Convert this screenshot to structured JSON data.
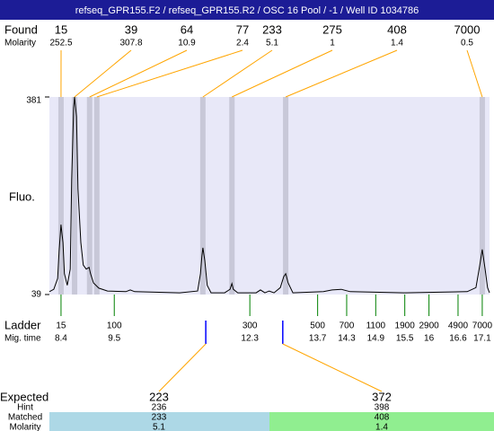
{
  "header": {
    "title": "refseq_GPR155.F2 / refseq_GPR155.R2 / OSC 16 Pool / -1 / Well ID 1034786"
  },
  "found": {
    "label": "Found",
    "molarity_label": "Molarity",
    "peaks": [
      {
        "size": 15,
        "molarity": 252.5,
        "time": 8.4
      },
      {
        "size": 39,
        "molarity": 307.8,
        "time": 8.68
      },
      {
        "size": 64,
        "molarity": 10.9,
        "time": 8.99
      },
      {
        "size": 77,
        "molarity": 2.4,
        "time": 9.14
      },
      {
        "size": 233,
        "molarity": 5.1,
        "time": 11.33
      },
      {
        "size": 275,
        "molarity": 1,
        "time": 11.93
      },
      {
        "size": 408,
        "molarity": 1.4,
        "time": 13.04
      },
      {
        "size": 7000,
        "molarity": 0.5,
        "time": 17.1
      }
    ]
  },
  "chart_data": {
    "type": "line",
    "y_label": "Fluo.",
    "color": "#000000",
    "xlim": [
      8.16,
      17.25
    ],
    "ylim": [
      39,
      381
    ],
    "yticks": [
      39,
      381
    ],
    "x": [
      8.16,
      8.25,
      8.33,
      8.36,
      8.4,
      8.44,
      8.47,
      8.53,
      8.59,
      8.62,
      8.66,
      8.68,
      8.72,
      8.75,
      8.81,
      8.86,
      8.92,
      8.98,
      9.01,
      9.07,
      9.18,
      9.36,
      9.74,
      9.83,
      9.92,
      10.85,
      11.22,
      11.28,
      11.31,
      11.33,
      11.37,
      11.42,
      11.5,
      11.78,
      11.89,
      11.93,
      11.96,
      12.05,
      12.43,
      12.52,
      12.61,
      12.7,
      12.8,
      12.93,
      13.0,
      13.04,
      13.09,
      13.19,
      13.82,
      14.0,
      14.19,
      14.37,
      15.49,
      16.79,
      16.97,
      17.05,
      17.1,
      17.16,
      17.21,
      17.25
    ],
    "values": [
      44,
      48,
      67,
      114,
      160,
      129,
      75,
      55,
      83,
      238,
      362,
      381,
      347,
      222,
      129,
      90,
      83,
      86,
      75,
      59,
      50,
      45,
      44,
      47,
      44,
      42,
      45,
      75,
      106,
      120,
      98,
      55,
      42,
      42,
      48,
      58,
      48,
      42,
      42,
      47,
      42,
      45,
      42,
      51,
      70,
      75,
      59,
      42,
      44,
      47,
      48,
      44,
      42,
      44,
      51,
      90,
      117,
      83,
      51,
      42
    ]
  },
  "ladder": {
    "label": "Ladder",
    "time_label": "Mig. time",
    "sizes": [
      15,
      100,
      300,
      500,
      700,
      1100,
      1900,
      2900,
      4900,
      7000
    ],
    "times": [
      8.4,
      9.5,
      12.3,
      13.7,
      14.3,
      14.9,
      15.5,
      16,
      16.6,
      17.1
    ]
  },
  "expected": {
    "label": "Expected",
    "hint_label": "Hint",
    "matched_label": "Matched",
    "molarity_label": "Molarity",
    "items": [
      {
        "size": 223,
        "hint": 236,
        "matched": 233,
        "molarity": 5.1,
        "time": 11.39
      },
      {
        "size": 372,
        "hint": 398,
        "matched": 408,
        "molarity": 1.4,
        "time": 12.98
      }
    ]
  }
}
